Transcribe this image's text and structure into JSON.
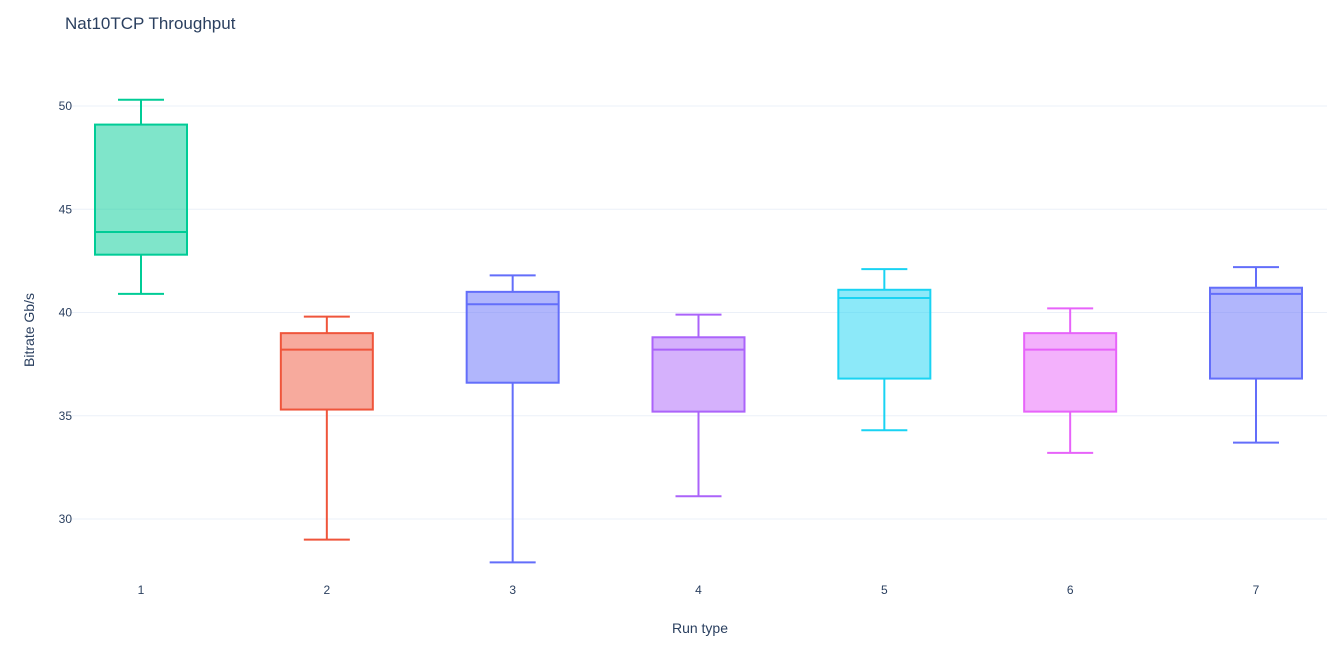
{
  "chart_data": {
    "type": "box",
    "title": "Nat10TCP Throughput",
    "xlabel": "Run type",
    "ylabel": "Bitrate Gb/s",
    "categories": [
      "1",
      "2",
      "3",
      "4",
      "5",
      "6",
      "7"
    ],
    "yticks": [
      30,
      35,
      40,
      45,
      50
    ],
    "ylim": [
      27.5,
      52.5
    ],
    "grid": true,
    "legend": "none",
    "series": [
      {
        "category": "1",
        "min": 40.9,
        "q1": 42.8,
        "median": 43.9,
        "q3": 49.1,
        "max": 50.3,
        "color": "#00cc96"
      },
      {
        "category": "2",
        "min": 29.0,
        "q1": 35.3,
        "median": 38.2,
        "q3": 39.0,
        "max": 39.8,
        "color": "#ef553b"
      },
      {
        "category": "3",
        "min": 27.9,
        "q1": 36.6,
        "median": 40.4,
        "q3": 41.0,
        "max": 41.8,
        "color": "#636efa"
      },
      {
        "category": "4",
        "min": 31.1,
        "q1": 35.2,
        "median": 38.2,
        "q3": 38.8,
        "max": 39.9,
        "color": "#ab63fa"
      },
      {
        "category": "5",
        "min": 34.3,
        "q1": 36.8,
        "median": 40.7,
        "q3": 41.1,
        "max": 42.1,
        "color": "#19d3f3"
      },
      {
        "category": "6",
        "min": 33.2,
        "q1": 35.2,
        "median": 38.2,
        "q3": 39.0,
        "max": 40.2,
        "color": "#e763fa"
      },
      {
        "category": "7",
        "min": 33.7,
        "q1": 36.8,
        "median": 40.9,
        "q3": 41.2,
        "max": 42.2,
        "color": "#636efa"
      }
    ]
  }
}
